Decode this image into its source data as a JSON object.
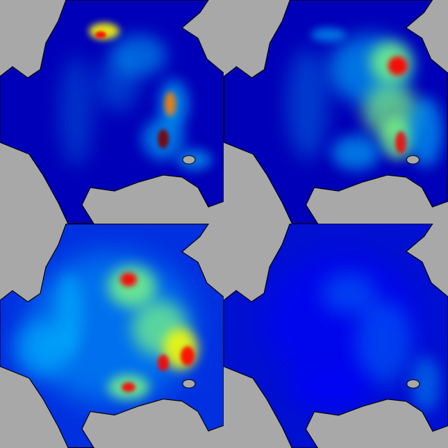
{
  "figure": {
    "colormap": "jet",
    "land_color": "#a8a8a8",
    "coast_color": "#000000",
    "colormap_stops": [
      "#00007f",
      "#0000ff",
      "#00bfff",
      "#7fff7f",
      "#ffff00",
      "#ff7f00",
      "#ff0000",
      "#7f0000"
    ],
    "panels": [
      {
        "id": "top-left"
      },
      {
        "id": "top-right"
      },
      {
        "id": "bottom-left"
      },
      {
        "id": "bottom-right"
      }
    ]
  }
}
